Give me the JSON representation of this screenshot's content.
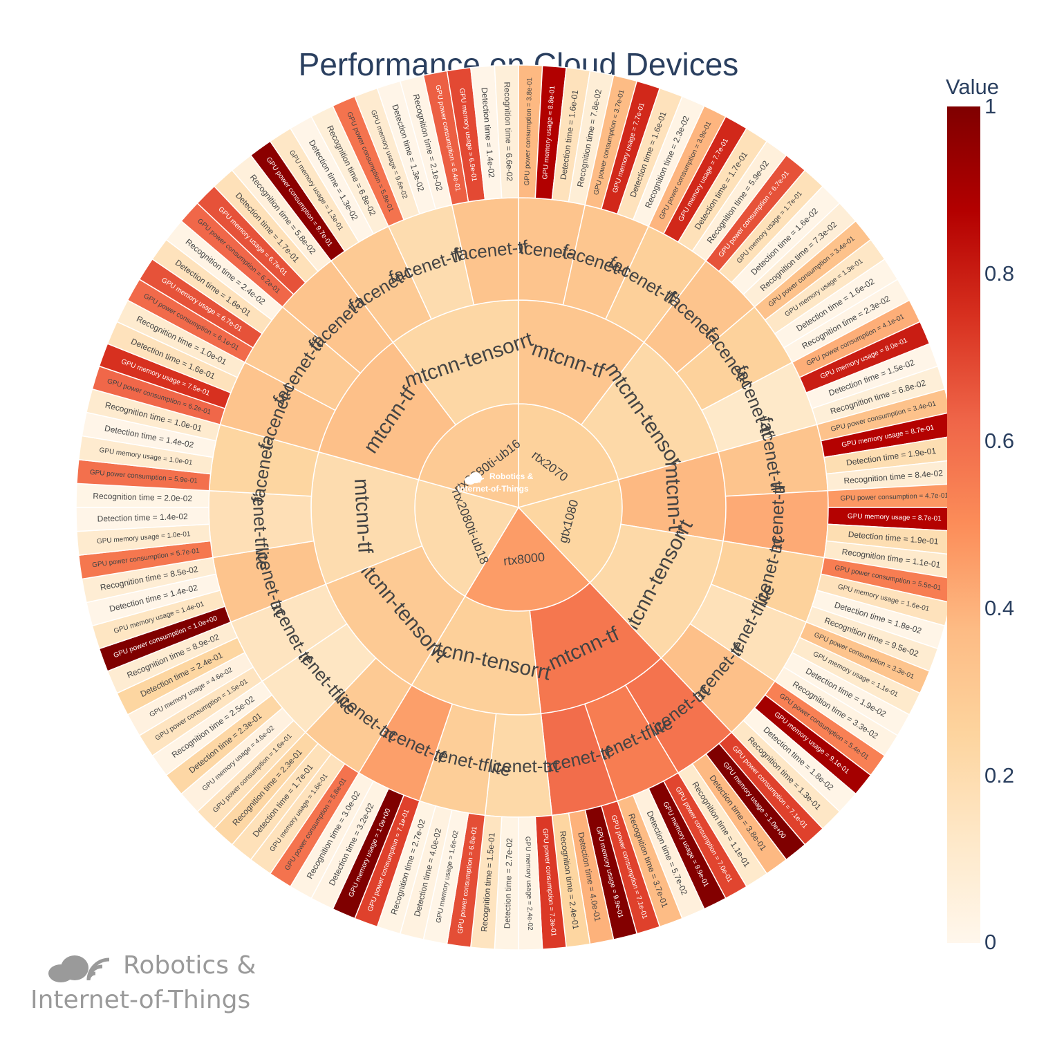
{
  "title": "Performance on Cloud Devices",
  "colorbar": {
    "title": "Value",
    "ticks": [
      "0",
      "0.2",
      "0.4",
      "0.6",
      "0.8",
      "1"
    ],
    "colorscale": [
      "#fff7ec",
      "#fee8c8",
      "#fdd49e",
      "#fdbb84",
      "#fc8d59",
      "#ef6548",
      "#d7301f",
      "#b30000",
      "#7f0000"
    ]
  },
  "logo": {
    "line1": "Robotics &",
    "line2": "Internet-of-Things"
  },
  "chart_data": {
    "type": "sunburst",
    "metric_labels": [
      "GPU power consumption",
      "GPU memory usage",
      "Detection time",
      "Recognition time"
    ],
    "devices": [
      {
        "name": "rtx2070",
        "value": 0.26,
        "groups": [
          {
            "name": "mtcnn-tf",
            "value": 0.32,
            "models": [
              {
                "name": "facenet-tf",
                "value": 0.33,
                "metrics": [
                  "3.8e-01",
                  "8.8e-01",
                  "1.6e-01",
                  "7.8e-02"
                ]
              },
              {
                "name": "facenet-trt",
                "value": 0.32,
                "metrics": [
                  "3.7e-01",
                  "7.7e-01",
                  "1.6e-01",
                  "2.3e-02"
                ]
              },
              {
                "name": "facenet-tflite",
                "value": 0.27,
                "metrics": [
                  "3.9e-01",
                  "7.7e-01",
                  "1.7e-01",
                  "5.9e-02"
                ]
              }
            ]
          },
          {
            "name": "mtcnn-tensorrt",
            "value": 0.22,
            "models": [
              {
                "name": "facenet-tf",
                "value": 0.33,
                "metrics": [
                  "6.7e-01",
                  "1.7e-01",
                  "1.6e-02",
                  "7.3e-02"
                ]
              },
              {
                "name": "facenet-trt",
                "value": 0.26,
                "metrics": [
                  "3.4e-01",
                  "1.3e-01",
                  "1.6e-02",
                  "2.3e-02"
                ]
              },
              {
                "name": "facenet-tflite",
                "value": 0.12,
                "metrics": [
                  "4.1e-01",
                  "8.0e-01",
                  "1.5e-02",
                  "6.8e-02"
                ]
              }
            ]
          }
        ]
      },
      {
        "name": "gtx1080",
        "value": 0.24,
        "groups": [
          {
            "name": "mtcnn-tf",
            "value": 0.38,
            "models": [
              {
                "name": "facenet-tflite",
                "value": 0.33,
                "metrics": [
                  "3.4e-01",
                  "8.7e-01",
                  "1.9e-01",
                  "8.4e-02"
                ]
              },
              {
                "name": "facenet-tf",
                "value": 0.42,
                "metrics": [
                  "4.7e-01",
                  "8.7e-01",
                  "1.9e-01",
                  "1.1e-01"
                ]
              }
            ]
          },
          {
            "name": "mtcnn-tensorrt",
            "value": 0.22,
            "models": [
              {
                "name": "facenet-trt",
                "value": 0.26,
                "metrics": [
                  "5.5e-01",
                  "1.6e-01",
                  "1.8e-02",
                  "9.5e-02"
                ]
              },
              {
                "name": "facenet-tflite",
                "value": 0.17,
                "metrics": [
                  "3.3e-01",
                  "1.1e-01",
                  "1.9e-02",
                  "3.3e-02"
                ]
              },
              {
                "name": "facenet-tf",
                "value": 0.35,
                "metrics": [
                  "5.4e-01",
                  "9.1e-01",
                  "1.8e-02",
                  "1.3e-01"
                ]
              }
            ]
          }
        ]
      },
      {
        "name": "rtx8000",
        "value": 0.46,
        "groups": [
          {
            "name": "mtcnn-tf",
            "value": 0.57,
            "models": [
              {
                "name": "facenet-trt",
                "value": 0.58,
                "metrics": [
                  "7.1e-01",
                  "1.0e+00",
                  "3.8e-01",
                  "1.1e-01"
                ]
              },
              {
                "name": "facenet-tflite",
                "value": 0.55,
                "metrics": [
                  "7.0e-01",
                  "9.9e-01",
                  "5.7e-02",
                  "3.7e-01"
                ]
              },
              {
                "name": "facenet-tf",
                "value": 0.6,
                "metrics": [
                  "7.1e-01",
                  "9.9e-01",
                  "4.0e-01",
                  "2.4e-01"
                ]
              }
            ]
          },
          {
            "name": "mtcnn-tensorrt",
            "value": 0.27,
            "models": [
              {
                "name": "facenet-trt",
                "value": 0.22,
                "metrics": [
                  "7.3e-01",
                  "2.4e-02",
                  "2.7e-02",
                  "1.5e-01"
                ]
              },
              {
                "name": "facenet-tflite",
                "value": 0.28,
                "metrics": [
                  "6.8e-01",
                  "1.6e-02",
                  "4.0e-02",
                  "2.7e-02"
                ]
              },
              {
                "name": "facenet-tf",
                "value": 0.45,
                "metrics": [
                  "7.1e-01",
                  "1.0e+00",
                  "3.2e-02",
                  "3.0e-02"
                ]
              }
            ]
          }
        ]
      },
      {
        "name": "rtx2080ti-ub18",
        "value": 0.21,
        "groups": [
          {
            "name": "mtcnn-tensorrt",
            "value": 0.3,
            "models": [
              {
                "name": "facenet-trt",
                "value": 0.3,
                "metrics": [
                  "5.8e-01",
                  "1.6e-01",
                  "1.7e-01",
                  "2.3e-01"
                ]
              },
              {
                "name": "facenet-tflite",
                "value": 0.14,
                "metrics": [
                  "1.6e-01",
                  "4.6e-02",
                  "2.3e-01",
                  "2.5e-02"
                ]
              },
              {
                "name": "facenet-tf",
                "value": 0.15,
                "metrics": [
                  "1.5e-01",
                  "4.6e-02",
                  "2.4e-01",
                  "8.9e-02"
                ]
              }
            ]
          },
          {
            "name": "mtcnn-tf",
            "value": 0.2,
            "models": [
              {
                "name": "facenet-trt",
                "value": 0.33,
                "metrics": [
                  "1.0e+00",
                  "1.4e-01",
                  "1.4e-02",
                  "8.5e-02"
                ]
              },
              {
                "name": "facenet-tflite",
                "value": 0.18,
                "metrics": [
                  "5.7e-01",
                  "1.0e-01",
                  "1.4e-02",
                  "2.0e-02"
                ]
              },
              {
                "name": "facenet-tf",
                "value": 0.24,
                "metrics": [
                  "5.9e-01",
                  "1.0e-01",
                  "1.4e-02",
                  "1.0e-01"
                ]
              }
            ]
          }
        ]
      },
      {
        "name": "rtx2080ti-ub16",
        "value": 0.3,
        "groups": [
          {
            "name": "mtcnn-tf",
            "value": 0.35,
            "models": [
              {
                "name": "facenet-trt",
                "value": 0.33,
                "metrics": [
                  "6.2e-01",
                  "7.5e-01",
                  "1.6e-01",
                  "1.0e-01"
                ]
              },
              {
                "name": "facenet-tflite",
                "value": 0.3,
                "metrics": [
                  "6.1e-01",
                  "6.7e-01",
                  "1.6e-01",
                  "2.4e-02"
                ]
              },
              {
                "name": "facenet-trt",
                "value": 0.33,
                "metrics": [
                  "6.2e-01",
                  "6.7e-01",
                  "1.7e-01",
                  "5.8e-02"
                ]
              }
            ]
          },
          {
            "name": "mtcnn-tensorrt",
            "value": 0.23,
            "models": [
              {
                "name": "facenet-trt",
                "value": 0.3,
                "metrics": [
                  "9.7e-01",
                  "1.3e-01",
                  "1.3e-02",
                  "6.8e-02"
                ]
              },
              {
                "name": "facenet-tflite",
                "value": 0.2,
                "metrics": [
                  "5.8e-01",
                  "9.6e-02",
                  "1.3e-02",
                  "2.1e-02"
                ]
              },
              {
                "name": "facenet-tf",
                "value": 0.33,
                "metrics": [
                  "6.4e-01",
                  "6.9e-01",
                  "1.4e-02",
                  "6.6e-02"
                ]
              }
            ]
          }
        ]
      }
    ]
  }
}
